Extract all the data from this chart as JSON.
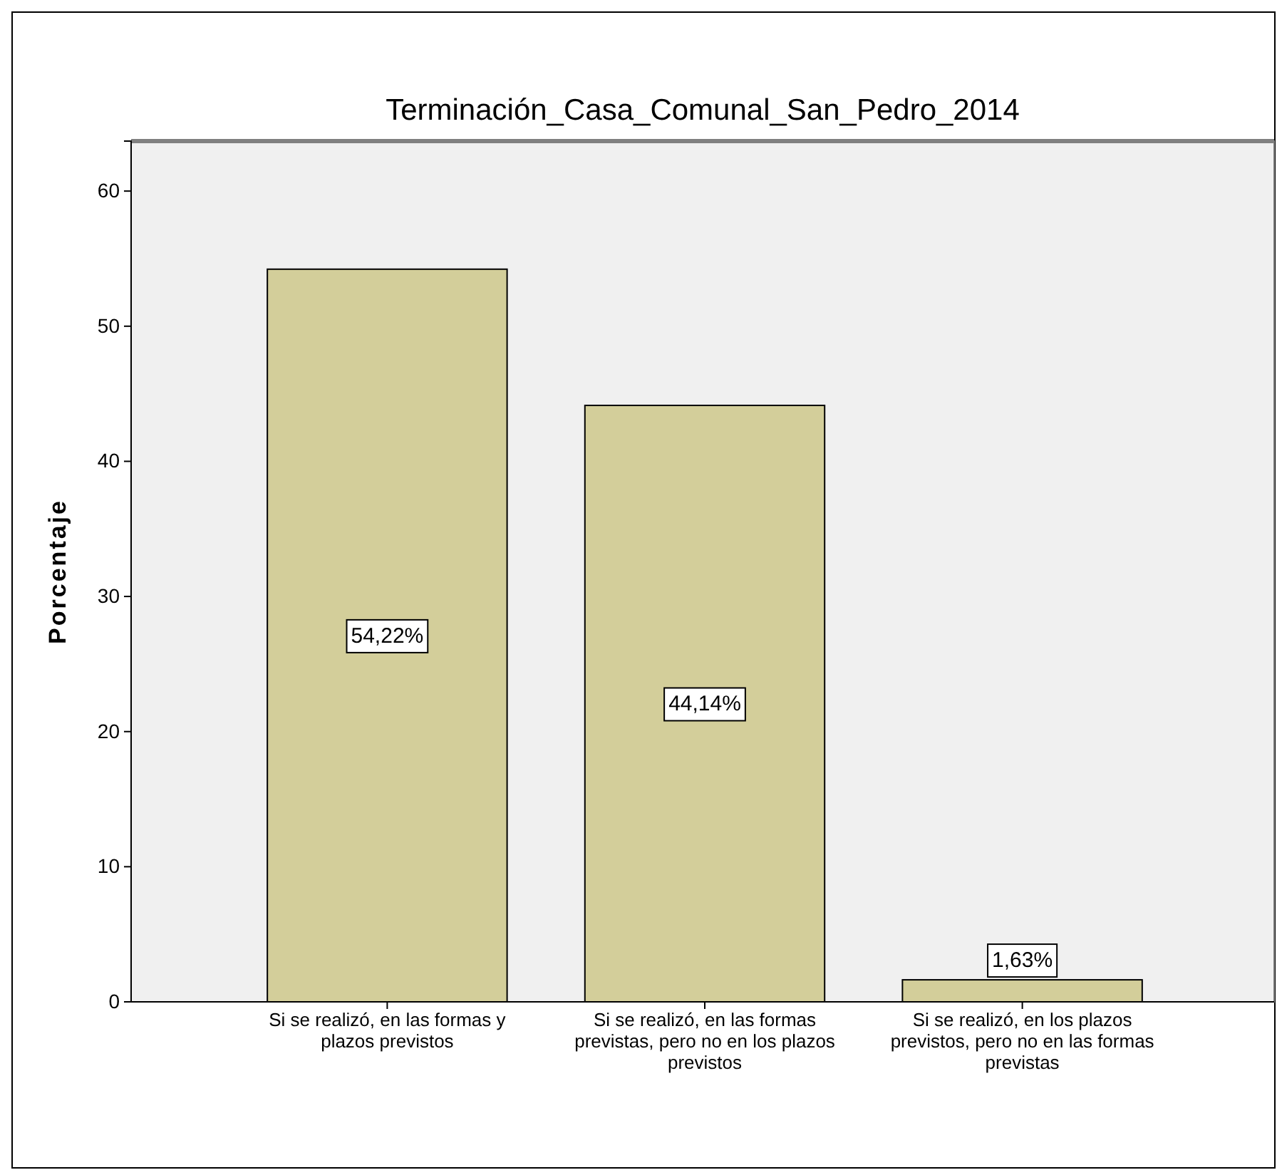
{
  "chart_data": {
    "type": "bar",
    "title": "Terminación_Casa_Comunal_San_Pedro_2014",
    "ylabel": "Porcentaje",
    "categories": [
      "Si se realizó, en las formas y plazos previstos",
      "Si se realizó, en las formas previstas, pero no en los plazos previstos",
      "Si se realizó, en los plazos previstos, pero no en las formas previstas"
    ],
    "values": [
      54.22,
      44.14,
      1.63
    ],
    "value_labels": [
      "54,22%",
      "44,14%",
      "1,63%"
    ],
    "color": "#d3ce9a",
    "ylim": [
      0,
      63.7
    ],
    "yticks": [
      0,
      10,
      20,
      30,
      40,
      50,
      60
    ],
    "grid": false
  }
}
